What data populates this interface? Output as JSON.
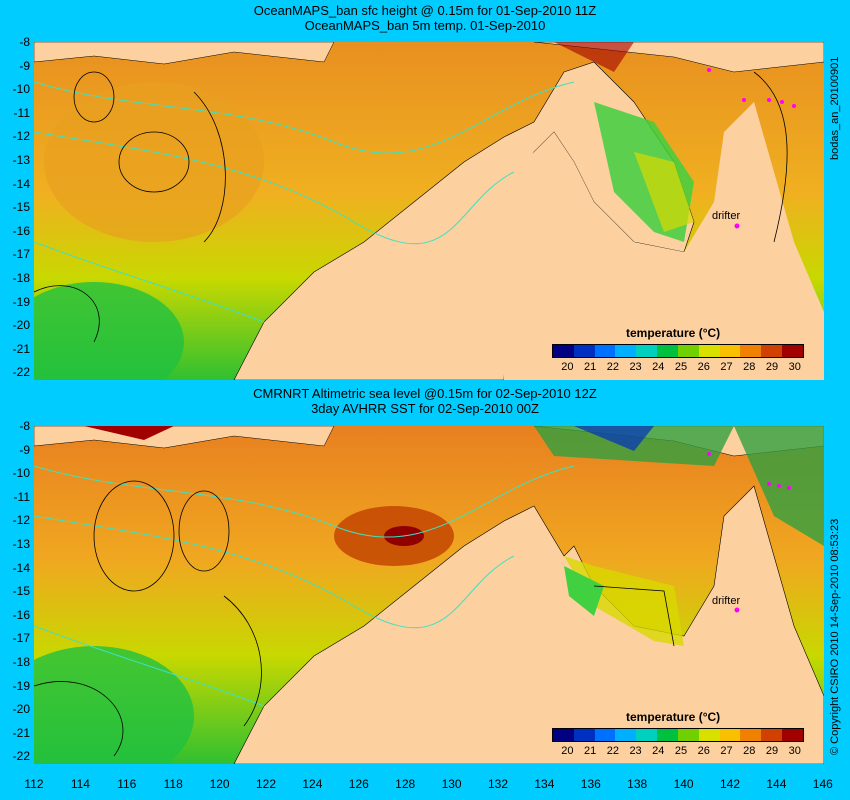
{
  "top": {
    "title1": "OceanMAPS_ban sfc height @ 0.15m for 01-Sep-2010 11Z",
    "title2": "OceanMAPS_ban 5m temp. 01-Sep-2010",
    "drifter": "drifter",
    "side_label": "bodas_an_20100901"
  },
  "bottom": {
    "title1": "CMRNRT Altimetric sea level  @0.15m  for 02-Sep-2010 12Z",
    "title2": "3day AVHRR SST for 02-Sep-2010 00Z",
    "drifter": "drifter",
    "side_label": "© Copyright CSIRO 2010   14-Sep-2010 08:53:23"
  },
  "legend": {
    "title": "temperature (°C)",
    "ticks": [
      "20",
      "21",
      "22",
      "23",
      "24",
      "25",
      "26",
      "27",
      "28",
      "29",
      "30"
    ],
    "colors": [
      "#000080",
      "#0030c0",
      "#0070ff",
      "#00b0ff",
      "#00d0c0",
      "#00c040",
      "#70d000",
      "#d8e000",
      "#f8c000",
      "#f08000",
      "#d04000",
      "#a00000"
    ]
  },
  "lat_ticks": [
    "-8",
    "-9",
    "-10",
    "-11",
    "-12",
    "-13",
    "-14",
    "-15",
    "-16",
    "-17",
    "-18",
    "-19",
    "-20",
    "-21",
    "-22"
  ],
  "lon_ticks": [
    "112",
    "114",
    "116",
    "118",
    "120",
    "122",
    "124",
    "126",
    "128",
    "130",
    "132",
    "134",
    "136",
    "138",
    "140",
    "142",
    "144",
    "146"
  ],
  "colors": {
    "background": "#00ccff",
    "land": "#fdd0a0",
    "ocean_warm": "#f0a020",
    "ocean_mid": "#d8d800",
    "ocean_cool": "#30c030",
    "contour": "#40e0c0",
    "drifter": "#ff00ff"
  }
}
